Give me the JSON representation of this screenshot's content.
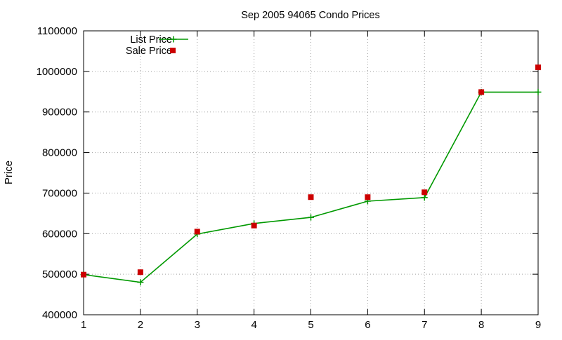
{
  "chart_data": {
    "type": "line",
    "title": "Sep 2005 94065 Condo Prices",
    "xlabel": "",
    "ylabel": "Price",
    "x": [
      1,
      2,
      3,
      4,
      5,
      6,
      7,
      8,
      9
    ],
    "xlim": [
      1,
      9
    ],
    "ylim": [
      400000,
      1100000
    ],
    "xticks": [
      "1",
      "2",
      "3",
      "4",
      "5",
      "6",
      "7",
      "8",
      "9"
    ],
    "yticks": [
      "400000",
      "500000",
      "600000",
      "700000",
      "800000",
      "900000",
      "1000000",
      "1100000"
    ],
    "grid": true,
    "legend_position": "top-left",
    "series": [
      {
        "name": "List Price",
        "style": "linespoints",
        "marker": "plus",
        "color": "#009900",
        "values": [
          499000,
          480000,
          599000,
          625000,
          640000,
          680000,
          689000,
          949000,
          949000
        ]
      },
      {
        "name": "Sale Price",
        "style": "points",
        "marker": "square",
        "color": "#cc0000",
        "values": [
          499000,
          505000,
          605000,
          620000,
          690000,
          690000,
          702000,
          949000,
          1010000
        ]
      }
    ]
  }
}
